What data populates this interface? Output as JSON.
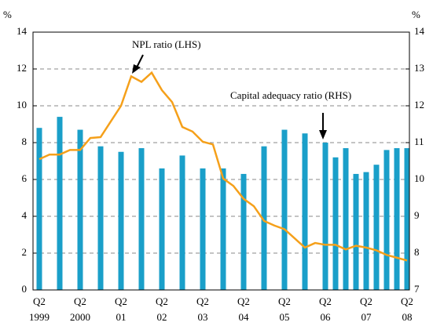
{
  "chart_data": {
    "type": "bar_line",
    "y_unit_left": "%",
    "y_unit_right": "%",
    "annotations": [
      "NPL ratio (LHS)",
      "Capital adequacy ratio (RHS)"
    ],
    "categories": [
      "Q2",
      null,
      null,
      null,
      "Q2",
      null,
      null,
      null,
      "Q2",
      null,
      null,
      null,
      "Q2",
      null,
      null,
      null,
      "Q2",
      null,
      null,
      null,
      "Q2",
      null,
      null,
      null,
      "Q2",
      null,
      null,
      null,
      "Q2",
      null,
      null,
      null,
      "Q2",
      null,
      null,
      null,
      "Q2"
    ],
    "years": [
      "1999",
      null,
      null,
      null,
      "2000",
      null,
      null,
      null,
      "01",
      null,
      null,
      null,
      "02",
      null,
      null,
      null,
      "03",
      null,
      null,
      null,
      "04",
      null,
      null,
      null,
      "05",
      null,
      null,
      null,
      "06",
      null,
      null,
      null,
      "07",
      null,
      null,
      null,
      "08"
    ],
    "series": [
      {
        "name": "Capital adequacy ratio (RHS)",
        "type": "bar",
        "axis": "y2",
        "color": "#1a9fc9",
        "values": [
          11.4,
          null,
          11.7,
          null,
          11.35,
          null,
          10.9,
          null,
          10.75,
          null,
          10.85,
          null,
          10.3,
          null,
          10.65,
          null,
          10.3,
          null,
          10.3,
          null,
          10.15,
          null,
          10.9,
          null,
          11.35,
          null,
          11.25,
          null,
          11.0,
          10.6,
          10.85,
          10.15,
          10.2,
          10.4,
          10.8,
          10.85,
          10.85
        ]
      },
      {
        "name": "NPL ratio (LHS)",
        "type": "line",
        "axis": "y",
        "color": "#f5a01a",
        "values": [
          7.1,
          7.35,
          7.35,
          7.6,
          7.6,
          8.25,
          8.3,
          9.15,
          10.0,
          11.6,
          11.3,
          11.8,
          10.85,
          10.2,
          8.85,
          8.6,
          8.05,
          7.9,
          6.05,
          5.65,
          4.95,
          4.55,
          3.75,
          3.5,
          3.3,
          2.8,
          2.3,
          2.55,
          2.45,
          2.45,
          2.2,
          2.4,
          2.3,
          2.15,
          1.9,
          1.75,
          1.6
        ]
      }
    ],
    "ylim": [
      0,
      14
    ],
    "yticks": [
      0,
      2,
      4,
      6,
      8,
      10,
      12,
      14
    ],
    "y2lim": [
      7,
      14
    ],
    "y2ticks": [
      7,
      8,
      9,
      10,
      11,
      12,
      13,
      14
    ],
    "grid": true
  }
}
